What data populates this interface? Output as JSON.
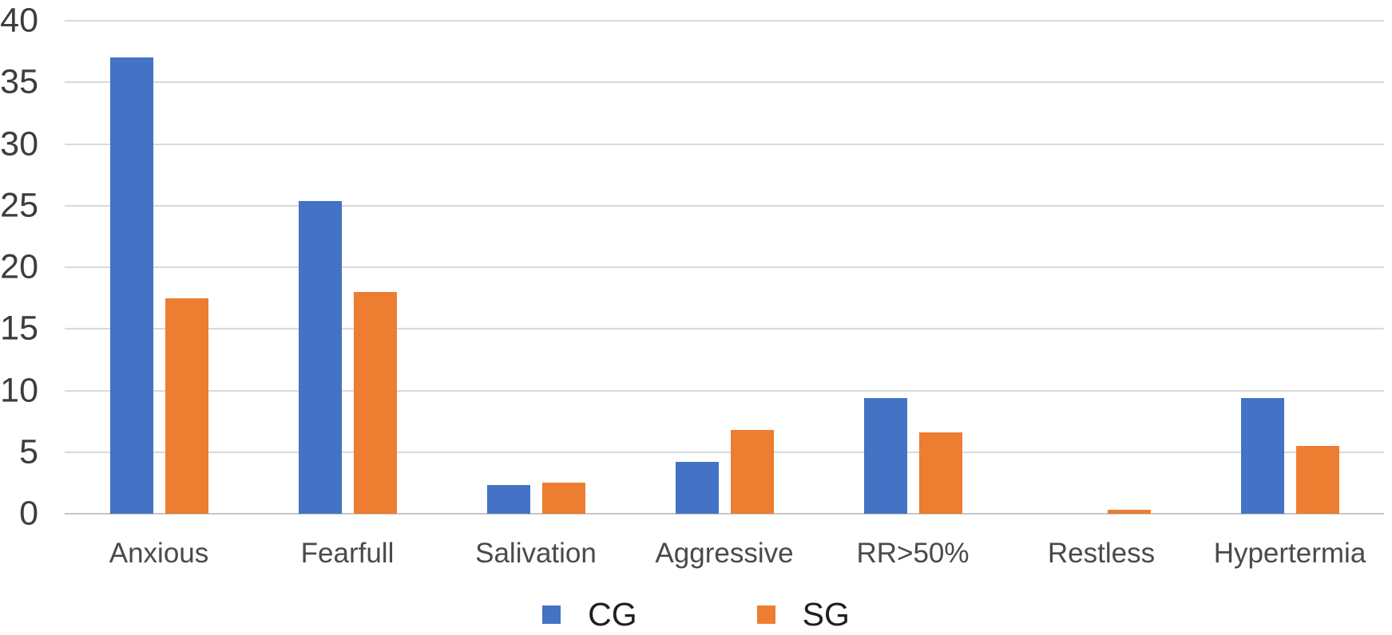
{
  "chart_data": {
    "type": "bar",
    "title": "",
    "xlabel": "",
    "ylabel": "",
    "categories": [
      "Anxious",
      "Fearfull",
      "Salivation",
      "Aggressive",
      "RR>50%",
      "Restless",
      "Hypertermia"
    ],
    "series": [
      {
        "name": "CG",
        "color": "#4472C4",
        "values": [
          37,
          25.4,
          2.3,
          4.2,
          9.4,
          0,
          9.4
        ]
      },
      {
        "name": "SG",
        "color": "#ED7D31",
        "values": [
          17.5,
          18,
          2.5,
          6.8,
          6.6,
          0.3,
          5.5
        ]
      }
    ],
    "ylim": [
      0,
      40
    ],
    "yticks": [
      0,
      5,
      10,
      15,
      20,
      25,
      30,
      35,
      40
    ],
    "grid": "horizontal",
    "legend_position": "bottom"
  },
  "colors": {
    "background": "#FFFFFF",
    "gridline": "#D9D9D9",
    "baseline": "#C6C6C6",
    "ytick_text": "#3D3D3D",
    "xlabel_text": "#4A4A4A",
    "legend_text": "#1F1F1F"
  }
}
